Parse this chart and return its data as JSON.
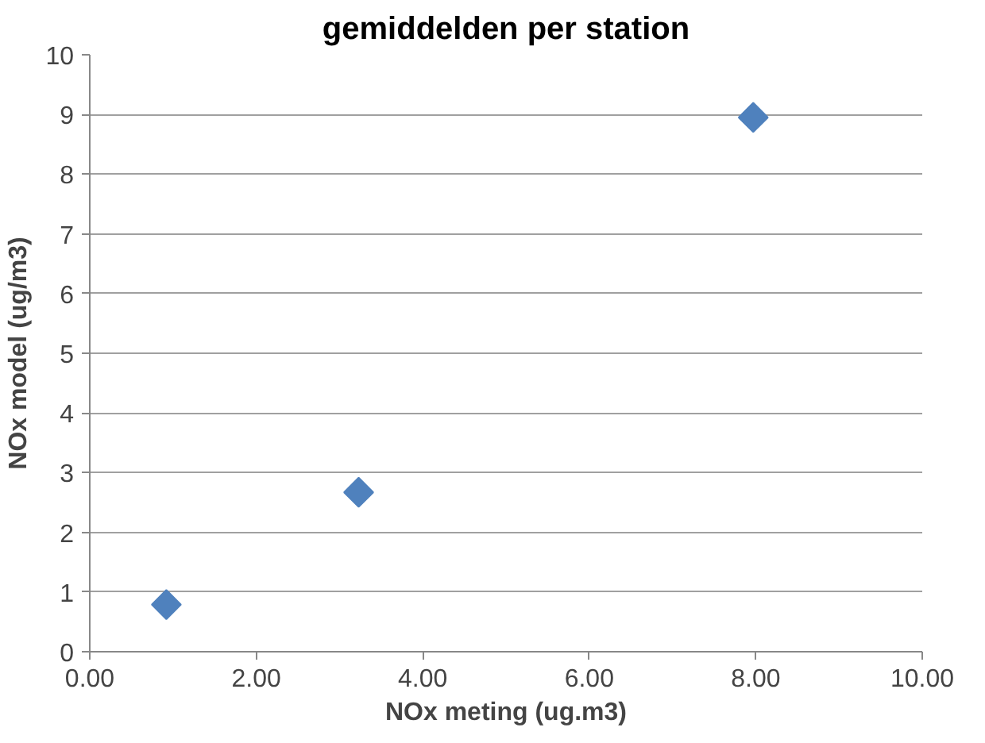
{
  "chart_data": {
    "type": "scatter",
    "title": "gemiddelden per station",
    "xlabel": "NOx meting (ug.m3)",
    "ylabel": "NOx model (ug/m3)",
    "x": [
      0.92,
      3.23,
      7.97
    ],
    "series": [
      {
        "color": "#4f81bd",
        "values": [
          0.79,
          2.67,
          8.95
        ]
      }
    ],
    "marker": "diamond",
    "xlim": [
      0,
      10
    ],
    "xticks": [
      {
        "value": 0,
        "label": "0.00"
      },
      {
        "value": 2,
        "label": "2.00"
      },
      {
        "value": 4,
        "label": "4.00"
      },
      {
        "value": 6,
        "label": "6.00"
      },
      {
        "value": 8,
        "label": "8.00"
      },
      {
        "value": 10,
        "label": "10.00"
      }
    ],
    "ylim": [
      0,
      10
    ],
    "yticks": [
      0,
      1,
      2,
      3,
      4,
      5,
      6,
      7,
      8,
      9,
      10
    ],
    "grid": "y"
  }
}
